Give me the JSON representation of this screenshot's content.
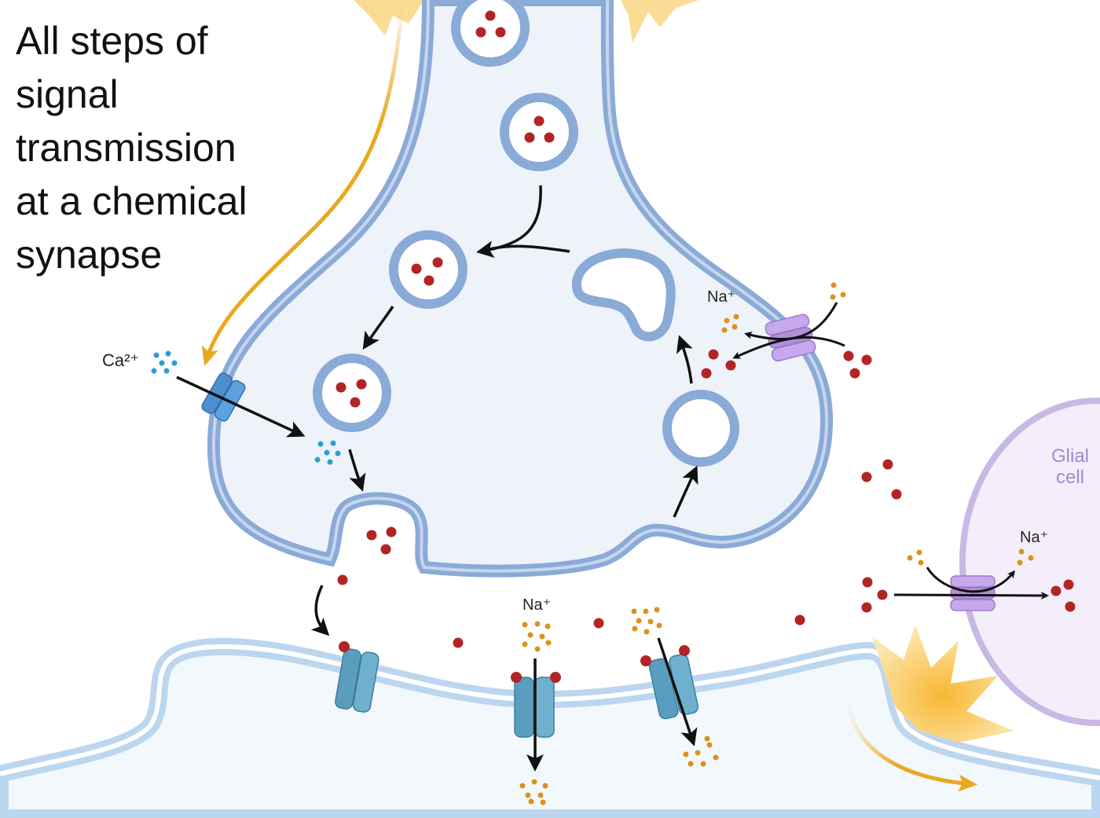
{
  "title": {
    "lines": [
      "All steps of",
      "signal",
      "transmission",
      "at a chemical",
      "synapse"
    ]
  },
  "labels": {
    "calcium": "Ca²⁺",
    "sodium_presynaptic": "Na⁺",
    "sodium_postsynaptic": "Na⁺",
    "sodium_glial": "Na⁺",
    "glial_cell_line1": "Glial",
    "glial_cell_line2": "cell"
  },
  "colors": {
    "presynaptic_membrane": "#8aaad8",
    "presynaptic_fill": "#eef3fa",
    "postsynaptic_membrane": "#bcd6ef",
    "glial_membrane": "#c9b8e3",
    "glial_fill": "#f3eefa",
    "neurotransmitter": "#b32424",
    "calcium_ion": "#2a9fd6",
    "sodium_ion": "#d9931a",
    "action_potential": "#f5bf3a",
    "calcium_channel": "#4f8fd0",
    "receptor_channel": "#5b9dbf",
    "transporter": "#b48fd9",
    "arrow": "#111111"
  },
  "icons": {
    "calcium_channel": "calcium-channel-icon",
    "receptor": "receptor-channel-icon",
    "transporter": "reuptake-transporter-icon",
    "vesicle": "synaptic-vesicle-icon",
    "action_potential": "action-potential-burst-icon"
  }
}
